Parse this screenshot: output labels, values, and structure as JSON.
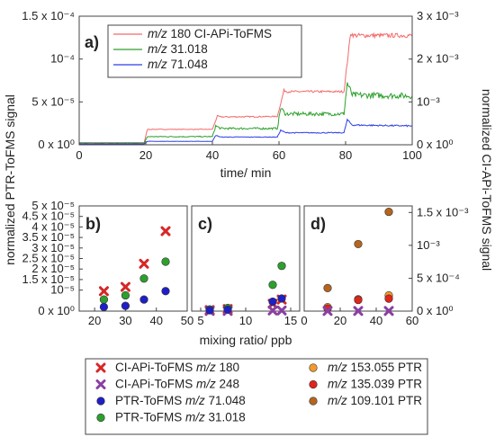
{
  "chart_data": [
    {
      "panel": "a)",
      "type": "line",
      "xlabel": "time/ min",
      "ylabel_left": "normalized PTR-ToFMS signal",
      "ylabel_right": "normalized CI-APi-ToFMS signal",
      "xlim": [
        0,
        100
      ],
      "ylim_left": [
        0,
        0.00015
      ],
      "ylim_right": [
        0,
        0.003
      ],
      "x_ticks": [
        "0",
        "20",
        "40",
        "60",
        "80",
        "100"
      ],
      "y_ticks_left": [
        {
          "value": 0,
          "label": "0 x 10⁰"
        },
        {
          "value": 5e-05,
          "label": "5 x 10⁻⁵"
        },
        {
          "value": 0.0001,
          "label": "10⁻⁴"
        },
        {
          "value": 0.00015,
          "label": "1.5 x 10⁻⁴"
        }
      ],
      "y_ticks_right": [
        {
          "value": 0,
          "label": "0 x 10⁰"
        },
        {
          "value": 0.001,
          "label": "10⁻³"
        },
        {
          "value": 0.002,
          "label": "2 x 10⁻³"
        },
        {
          "value": 0.003,
          "label": "3 x 10⁻³"
        }
      ],
      "series": [
        {
          "name": "m/z 180 CI-APi-ToFMS",
          "axis": "right",
          "color": "#f26a6a",
          "x": [
            0,
            19.5,
            20.5,
            40,
            41.5,
            42.5,
            59.5,
            61.5,
            62.5,
            79.5,
            81.5,
            82.5,
            100
          ],
          "y": [
            5e-05,
            5e-05,
            0.00036,
            0.00036,
            0.00067,
            0.00065,
            0.00066,
            0.00127,
            0.00124,
            0.00124,
            0.0026,
            0.00255,
            0.00255
          ]
        },
        {
          "name": "m/z 31.018",
          "axis": "left",
          "color": "#2ca02c",
          "x": [
            0,
            19.5,
            20.5,
            40,
            41,
            42.5,
            59.5,
            60.5,
            62,
            79.5,
            80.5,
            82,
            100
          ],
          "y": [
            2e-06,
            2e-06,
            9.5e-06,
            9.5e-06,
            2.2e-05,
            1.9e-05,
            1.9e-05,
            4.3e-05,
            3.6e-05,
            3.6e-05,
            7.2e-05,
            5.8e-05,
            5.7e-05
          ]
        },
        {
          "name": "m/z 71.048",
          "axis": "left",
          "color": "#2d3ee6",
          "x": [
            0,
            19.5,
            20.5,
            40,
            41,
            42.5,
            59.5,
            60.5,
            62,
            79.5,
            80.5,
            82,
            100
          ],
          "y": [
            1e-06,
            1e-06,
            4e-06,
            4e-06,
            1.1e-05,
            9e-06,
            9e-06,
            1.7e-05,
            1.4e-05,
            1.4e-05,
            2.9e-05,
            2.3e-05,
            2.2e-05
          ]
        }
      ]
    },
    {
      "panel": "b)",
      "type": "scatter",
      "xlim": [
        15,
        50
      ],
      "ylim": [
        0,
        5e-05
      ],
      "x_ticks": [
        "20",
        "30",
        "40",
        "50"
      ],
      "y_ticks": [
        {
          "value": 0,
          "label": "0 x 10⁰"
        },
        {
          "value": 1e-05,
          "label": "10⁻⁵"
        },
        {
          "value": 1.5e-05,
          "label": "1.5 x 10⁻⁵"
        },
        {
          "value": 2e-05,
          "label": "2 x 10⁻⁵"
        },
        {
          "value": 2.5e-05,
          "label": "2.5 x 10⁻⁵"
        },
        {
          "value": 3e-05,
          "label": "3 x 10⁻⁵"
        },
        {
          "value": 3.5e-05,
          "label": "3.5 x 10⁻⁵"
        },
        {
          "value": 4e-05,
          "label": "4 x 10⁻⁵"
        },
        {
          "value": 4.5e-05,
          "label": "4.5 x 10⁻⁵"
        },
        {
          "value": 5e-05,
          "label": "5 x 10⁻⁵"
        }
      ],
      "series": [
        {
          "key": "ci180",
          "x": [
            23,
            30,
            36,
            43
          ],
          "y": [
            9.5e-06,
            1.15e-05,
            2.25e-05,
            3.8e-05
          ]
        },
        {
          "key": "ptr31",
          "x": [
            23,
            30,
            36,
            43
          ],
          "y": [
            5.5e-06,
            7.5e-06,
            1.55e-05,
            2.35e-05
          ]
        },
        {
          "key": "ptr71",
          "x": [
            23,
            30,
            36,
            43
          ],
          "y": [
            2e-06,
            2.5e-06,
            5.5e-06,
            9.5e-06
          ]
        }
      ]
    },
    {
      "panel": "c)",
      "type": "scatter",
      "xlim": [
        4,
        16
      ],
      "ylim": [
        0,
        5e-05
      ],
      "x_ticks": [
        "5",
        "10",
        "15"
      ],
      "series": [
        {
          "key": "ci180",
          "x": [
            6,
            8,
            13,
            14
          ],
          "y": [
            5e-07,
            1e-06,
            3.5e-06,
            5.5e-06
          ]
        },
        {
          "key": "ci248",
          "x": [
            6,
            8,
            13,
            14
          ],
          "y": [
            1e-07,
            1e-07,
            3e-07,
            3e-07
          ]
        },
        {
          "key": "ptr31",
          "x": [
            6,
            8,
            13,
            14
          ],
          "y": [
            8e-07,
            1.5e-06,
            1.25e-05,
            2.15e-05
          ]
        },
        {
          "key": "ptr71",
          "x": [
            6,
            8,
            13,
            14
          ],
          "y": [
            4e-07,
            7e-07,
            4.5e-06,
            6e-06
          ]
        }
      ]
    },
    {
      "panel": "d)",
      "type": "scatter",
      "xlim": [
        0,
        60
      ],
      "ylim_right": [
        0,
        0.0016
      ],
      "x_ticks": [
        "0",
        "20",
        "40",
        "60"
      ],
      "y_ticks_right": [
        {
          "value": 0,
          "label": "0 x 10⁰"
        },
        {
          "value": 0.0005,
          "label": "5 x 10⁻⁴"
        },
        {
          "value": 0.001,
          "label": "10⁻³"
        },
        {
          "value": 0.0015,
          "label": "1.5 x 10⁻³"
        }
      ],
      "series": [
        {
          "key": "ptr153",
          "x": [
            13,
            30,
            47
          ],
          "y": [
            6e-05,
            0.00018,
            0.00024
          ]
        },
        {
          "key": "ptr135",
          "x": [
            13,
            30,
            47
          ],
          "y": [
            4e-05,
            0.00017,
            0.00019
          ]
        },
        {
          "key": "ptr109",
          "x": [
            13,
            30,
            47
          ],
          "y": [
            0.00035,
            0.00102,
            0.00151
          ]
        },
        {
          "key": "ci248",
          "x": [
            13,
            30,
            47
          ],
          "y": [
            2e-06,
            2e-06,
            2e-06
          ]
        }
      ]
    }
  ],
  "shared": {
    "xlabel_bottom": "mixing ratio/ ppb",
    "ylabel_left": "normalized PTR-ToFMS signal",
    "ylabel_right": "normalized CI-APi-ToFMS signal"
  },
  "legend_a": [
    {
      "prefix": "",
      "mz": "m/z",
      "suffix": " 180 CI-APi-ToFMS",
      "color": "#f26a6a"
    },
    {
      "prefix": "",
      "mz": "m/z",
      "suffix": " 31.018",
      "color": "#2ca02c"
    },
    {
      "prefix": "",
      "mz": "m/z",
      "suffix": " 71.048",
      "color": "#2d3ee6"
    }
  ],
  "legend_bottom": [
    {
      "key": "ci180",
      "marker": "x",
      "color": "#d62728",
      "prefix": "CI-APi-ToFMS ",
      "mz": "m/z",
      "suffix": " 180"
    },
    {
      "key": "ci248",
      "marker": "x",
      "color": "#8a3fa3",
      "prefix": "CI-APi-ToFMS ",
      "mz": "m/z",
      "suffix": " 248"
    },
    {
      "key": "ptr71",
      "marker": "o",
      "color": "#1f1fc8",
      "prefix": "PTR-ToFMS ",
      "mz": "m/z",
      "suffix": " 71.048"
    },
    {
      "key": "ptr31",
      "marker": "o",
      "color": "#2ca02c",
      "prefix": "PTR-ToFMS ",
      "mz": "m/z",
      "suffix": " 31.018"
    },
    {
      "key": "ptr153",
      "marker": "o",
      "color": "#f39a2b",
      "prefix": "",
      "mz": "m/z",
      "suffix": " 153.055 PTR"
    },
    {
      "key": "ptr135",
      "marker": "o",
      "color": "#e3241b",
      "prefix": "",
      "mz": "m/z",
      "suffix": " 135.039 PTR"
    },
    {
      "key": "ptr109",
      "marker": "o",
      "color": "#b5651d",
      "prefix": "",
      "mz": "m/z",
      "suffix": " 109.101 PTR"
    }
  ]
}
